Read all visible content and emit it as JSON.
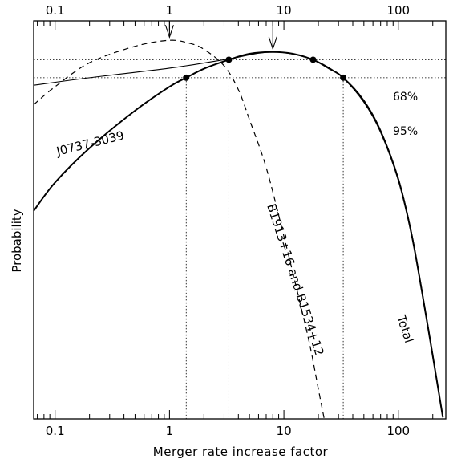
{
  "chart_data": {
    "type": "line",
    "xscale": "log",
    "xlim": [
      0.065,
      260
    ],
    "ylim": [
      0,
      1.33
    ],
    "grid": false,
    "xlabel": "Merger rate increase factor",
    "ylabel": "Probability",
    "xticks_bottom": [
      {
        "value": 0.1,
        "label": "0.1"
      },
      {
        "value": 1,
        "label": "1"
      },
      {
        "value": 10,
        "label": "10"
      },
      {
        "value": 100,
        "label": "100"
      }
    ],
    "xticks_top": [
      {
        "value": 0.1,
        "label": "0.1"
      },
      {
        "value": 1,
        "label": "1"
      },
      {
        "value": 10,
        "label": "10"
      },
      {
        "value": 100,
        "label": "100"
      }
    ],
    "series": [
      {
        "name": "Total",
        "style": "thick-solid",
        "points": [
          {
            "x": 0.065,
            "y": 0.695
          },
          {
            "x": 0.1,
            "y": 0.79
          },
          {
            "x": 0.2,
            "y": 0.905
          },
          {
            "x": 0.5,
            "y": 1.03
          },
          {
            "x": 1,
            "y": 1.11
          },
          {
            "x": 1.4,
            "y": 1.14
          },
          {
            "x": 2,
            "y": 1.17
          },
          {
            "x": 3.3,
            "y": 1.2
          },
          {
            "x": 5,
            "y": 1.22
          },
          {
            "x": 8,
            "y": 1.226
          },
          {
            "x": 12,
            "y": 1.22
          },
          {
            "x": 18,
            "y": 1.2
          },
          {
            "x": 25,
            "y": 1.17
          },
          {
            "x": 33,
            "y": 1.14
          },
          {
            "x": 50,
            "y": 1.06
          },
          {
            "x": 70,
            "y": 0.96
          },
          {
            "x": 100,
            "y": 0.8
          },
          {
            "x": 130,
            "y": 0.62
          },
          {
            "x": 160,
            "y": 0.43
          },
          {
            "x": 200,
            "y": 0.21
          },
          {
            "x": 245,
            "y": 0.005
          }
        ]
      },
      {
        "name": "J0737-3039",
        "style": "thin-solid",
        "points": [
          {
            "x": 0.065,
            "y": 1.115
          },
          {
            "x": 0.2,
            "y": 1.14
          },
          {
            "x": 1,
            "y": 1.172
          },
          {
            "x": 3,
            "y": 1.2
          },
          {
            "x": 8,
            "y": 1.226
          },
          {
            "x": 18,
            "y": 1.2
          },
          {
            "x": 33,
            "y": 1.14
          },
          {
            "x": 50,
            "y": 1.065
          },
          {
            "x": 70,
            "y": 0.965
          },
          {
            "x": 100,
            "y": 0.805
          },
          {
            "x": 130,
            "y": 0.625
          },
          {
            "x": 160,
            "y": 0.435
          },
          {
            "x": 200,
            "y": 0.215
          },
          {
            "x": 245,
            "y": 0.005
          }
        ]
      },
      {
        "name": "B1913+16 and B1534+12",
        "style": "dashed",
        "points": [
          {
            "x": 0.065,
            "y": 1.05
          },
          {
            "x": 0.1,
            "y": 1.11
          },
          {
            "x": 0.2,
            "y": 1.19
          },
          {
            "x": 0.5,
            "y": 1.245
          },
          {
            "x": 1,
            "y": 1.265
          },
          {
            "x": 1.5,
            "y": 1.255
          },
          {
            "x": 2,
            "y": 1.235
          },
          {
            "x": 3,
            "y": 1.18
          },
          {
            "x": 4,
            "y": 1.1
          },
          {
            "x": 5,
            "y": 1.0
          },
          {
            "x": 7,
            "y": 0.84
          },
          {
            "x": 10,
            "y": 0.61
          },
          {
            "x": 14,
            "y": 0.38
          },
          {
            "x": 17,
            "y": 0.24
          },
          {
            "x": 20,
            "y": 0.1
          },
          {
            "x": 22.5,
            "y": 0.0
          }
        ]
      }
    ],
    "confidence_levels": [
      {
        "label": "68%",
        "y": 1.2,
        "x_range": [
          3.3,
          18
        ]
      },
      {
        "label": "95%",
        "y": 1.14,
        "x_range": [
          1.4,
          33
        ]
      }
    ],
    "arrows": [
      {
        "x": 1,
        "y_from": 1.33,
        "y_to": 1.265
      },
      {
        "x": 8,
        "y_from": 1.33,
        "y_to": 1.226
      }
    ],
    "labels": {
      "total": "Total",
      "j0737": "J0737-3039",
      "b1913": "B1913+16 and B1534+12",
      "level68": "68%",
      "level95": "95%"
    }
  }
}
